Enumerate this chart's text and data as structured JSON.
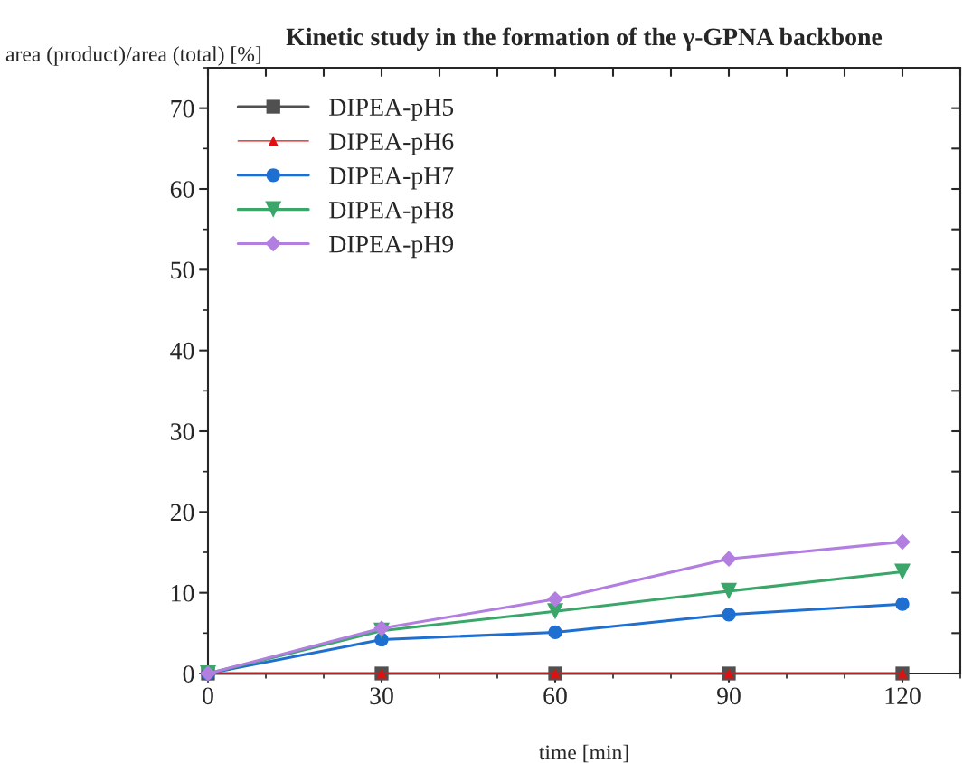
{
  "chart_data": {
    "type": "line",
    "title": "Kinetic study in the formation of the γ-GPNA backbone",
    "xlabel": "time [min]",
    "ylabel": "area (product)/area (total) [%]",
    "x": [
      0,
      30,
      60,
      90,
      120
    ],
    "series": [
      {
        "name": "DIPEA-pH5",
        "color": "#505050",
        "marker": "square",
        "values": [
          0,
          0,
          0,
          0,
          0
        ]
      },
      {
        "name": "DIPEA-pH6",
        "color": "#e01010",
        "marker": "triangle",
        "values": [
          0,
          0,
          0,
          0,
          0
        ]
      },
      {
        "name": "DIPEA-pH7",
        "color": "#1f6fd0",
        "marker": "circle",
        "values": [
          0,
          4.2,
          5.1,
          7.3,
          8.6
        ]
      },
      {
        "name": "DIPEA-pH8",
        "color": "#3aa66a",
        "marker": "triangle_down",
        "values": [
          0,
          5.3,
          7.7,
          10.2,
          12.6
        ]
      },
      {
        "name": "DIPEA-pH9",
        "color": "#b27ee0",
        "marker": "diamond",
        "values": [
          0,
          5.6,
          9.2,
          14.2,
          16.3
        ]
      }
    ],
    "xlim": [
      0,
      130
    ],
    "xticks": [
      0,
      30,
      60,
      90,
      120
    ],
    "ylim": [
      0,
      75
    ],
    "yticks": [
      0,
      10,
      20,
      30,
      40,
      50,
      60,
      70
    ],
    "grid": false,
    "legend": "top left",
    "line_style": "solid"
  }
}
